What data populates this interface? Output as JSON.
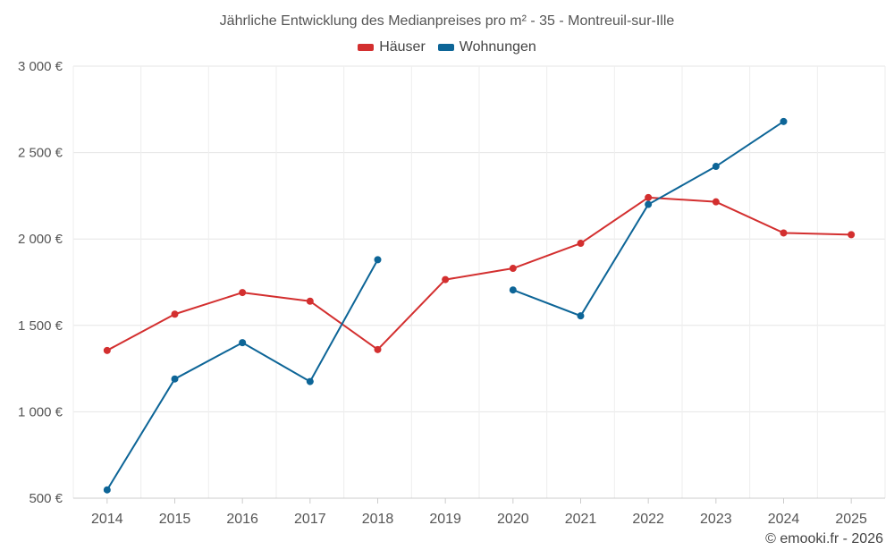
{
  "chart_data": {
    "type": "line",
    "title": "Jährliche Entwicklung des Medianpreises pro m² - 35 - Montreuil-sur-Ille",
    "categories": [
      "2014",
      "2015",
      "2016",
      "2017",
      "2018",
      "2019",
      "2020",
      "2021",
      "2022",
      "2023",
      "2024",
      "2025"
    ],
    "ylim": [
      500,
      3000
    ],
    "yticks": [
      500,
      1000,
      1500,
      2000,
      2500,
      3000
    ],
    "ytick_labels": [
      "500 €",
      "1 000 €",
      "1 500 €",
      "2 000 €",
      "2 500 €",
      "3 000 €"
    ],
    "legend_position": "top-center",
    "grid": true,
    "series": [
      {
        "name": "Häuser",
        "color": "#d32f2f",
        "values": [
          1355,
          1565,
          1690,
          1640,
          1360,
          1765,
          1830,
          1975,
          2240,
          2215,
          2035,
          2025
        ]
      },
      {
        "name": "Wohnungen",
        "color": "#0d6597",
        "values": [
          548,
          1190,
          1400,
          1175,
          1880,
          null,
          1705,
          1555,
          2200,
          2420,
          2680,
          null
        ]
      }
    ]
  },
  "credit": "© emooki.fr - 2026"
}
